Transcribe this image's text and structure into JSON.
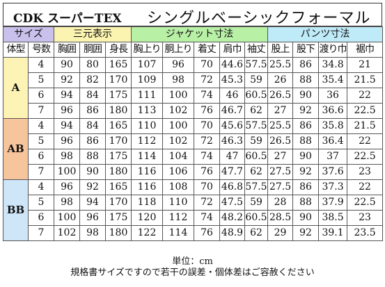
{
  "title": {
    "brand": "CDK スーパーTEX",
    "product": "シングルベーシックフォーマル"
  },
  "group_headers": {
    "size": "サイズ",
    "three": "三元表示",
    "jacket": "ジャケット寸法",
    "pants": "パンツ寸法"
  },
  "columns": [
    "体型",
    "号数",
    "胸囲",
    "胴囲",
    "身長",
    "胸上り",
    "胴上り",
    "着丈",
    "肩巾",
    "袖丈",
    "股上",
    "股下",
    "渡り巾",
    "裾巾"
  ],
  "groups": [
    {
      "type": "A",
      "rows": [
        [
          "4",
          "90",
          "80",
          "165",
          "107",
          "96",
          "70",
          "44.6",
          "57.5",
          "25.5",
          "86",
          "34.8",
          "21"
        ],
        [
          "5",
          "92",
          "82",
          "170",
          "109",
          "98",
          "72",
          "45.3",
          "59",
          "26",
          "88",
          "35.4",
          "21.5"
        ],
        [
          "6",
          "94",
          "84",
          "175",
          "111",
          "100",
          "74",
          "46",
          "60.5",
          "26.5",
          "90",
          "36",
          "22"
        ],
        [
          "7",
          "96",
          "86",
          "180",
          "113",
          "102",
          "76",
          "46.7",
          "62",
          "27",
          "92",
          "36.6",
          "22.5"
        ]
      ]
    },
    {
      "type": "AB",
      "rows": [
        [
          "4",
          "94",
          "84",
          "165",
          "110",
          "100",
          "70",
          "45.6",
          "57.5",
          "25.5",
          "86",
          "35.8",
          "21.5"
        ],
        [
          "5",
          "96",
          "86",
          "170",
          "112",
          "102",
          "72",
          "46.3",
          "59",
          "26.5",
          "88",
          "36.4",
          "22"
        ],
        [
          "6",
          "98",
          "88",
          "175",
          "114",
          "104",
          "74",
          "47",
          "60.5",
          "27",
          "90",
          "37",
          "22.5"
        ],
        [
          "7",
          "100",
          "90",
          "180",
          "116",
          "106",
          "76",
          "47.7",
          "62",
          "27.5",
          "92",
          "37.6",
          "23"
        ]
      ]
    },
    {
      "type": "BB",
      "rows": [
        [
          "4",
          "96",
          "92",
          "165",
          "116",
          "108",
          "70",
          "46.8",
          "57.5",
          "27.5",
          "86",
          "37.3",
          "22"
        ],
        [
          "5",
          "98",
          "94",
          "170",
          "118",
          "110",
          "72",
          "47.5",
          "59",
          "28",
          "88",
          "37.9",
          "22.5"
        ],
        [
          "6",
          "100",
          "96",
          "175",
          "120",
          "112",
          "74",
          "48.2",
          "60.5",
          "28.5",
          "90",
          "38.5",
          "23"
        ],
        [
          "7",
          "102",
          "98",
          "180",
          "122",
          "114",
          "76",
          "48.9",
          "62",
          "29",
          "92",
          "39.1",
          "23.5"
        ]
      ]
    }
  ],
  "footer": {
    "unit": "単位：cm",
    "note": "規格書サイズですので若干の誤差・個体差はご容赦ください"
  },
  "colors": {
    "size_header": "#c9c0ec",
    "three_header": "#fbf4b0",
    "jacket_header": "#b8f0a6",
    "pants_header": "#bfeaf8",
    "type_A": "#fcf3b4",
    "type_AB": "#f7c59c",
    "type_BB": "#cfe6f9"
  }
}
